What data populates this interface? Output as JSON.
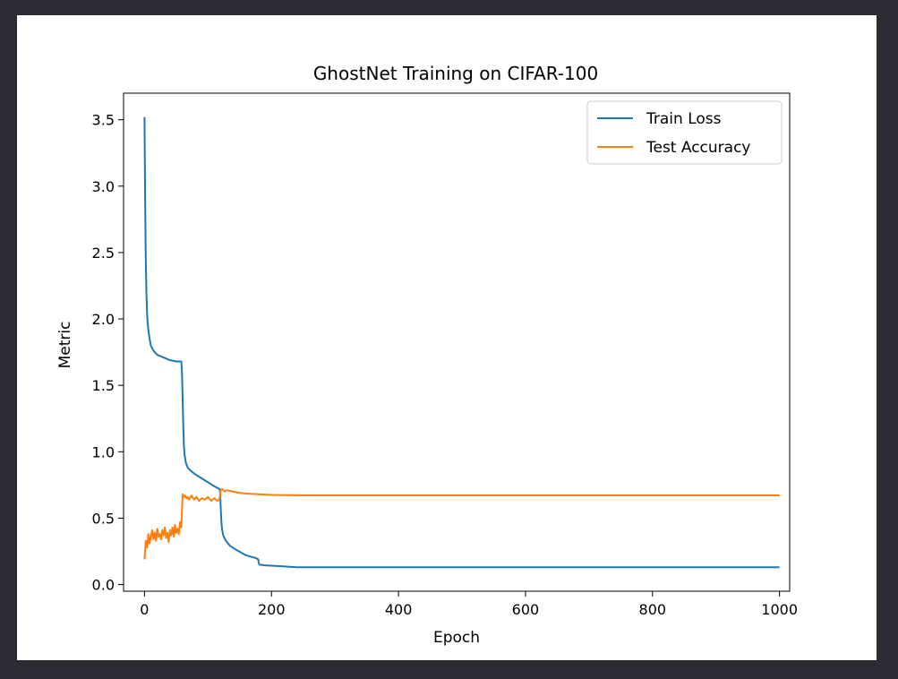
{
  "chart_data": {
    "type": "line",
    "title": "GhostNet Training on CIFAR-100",
    "xlabel": "Epoch",
    "ylabel": "Metric",
    "xlim": [
      -33,
      1016
    ],
    "ylim": [
      -0.05,
      3.7
    ],
    "xticks": [
      0,
      200,
      400,
      600,
      800,
      1000
    ],
    "yticks": [
      0.0,
      0.5,
      1.0,
      1.5,
      2.0,
      2.5,
      3.0,
      3.5
    ],
    "xtick_labels": [
      "0",
      "200",
      "400",
      "600",
      "800",
      "1000"
    ],
    "ytick_labels": [
      "0.0",
      "0.5",
      "1.0",
      "1.5",
      "2.0",
      "2.5",
      "3.0",
      "3.5"
    ],
    "grid": false,
    "legend_position": "top-right",
    "series": [
      {
        "name": "Train Loss",
        "color": "#1f77b4",
        "x": [
          0,
          1,
          2,
          3,
          4,
          5,
          6,
          8,
          10,
          13,
          16,
          20,
          25,
          30,
          40,
          50,
          58,
          59,
          60,
          61,
          62,
          63,
          65,
          68,
          72,
          80,
          90,
          100,
          110,
          118,
          119,
          120,
          121,
          122,
          124,
          128,
          135,
          145,
          160,
          175,
          179,
          180,
          181,
          190,
          210,
          240,
          300,
          400,
          500,
          600,
          700,
          800,
          900,
          1000
        ],
        "y": [
          3.52,
          2.9,
          2.45,
          2.2,
          2.05,
          1.97,
          1.92,
          1.85,
          1.8,
          1.77,
          1.75,
          1.73,
          1.72,
          1.71,
          1.69,
          1.68,
          1.68,
          1.6,
          1.4,
          1.2,
          1.05,
          0.98,
          0.92,
          0.88,
          0.86,
          0.83,
          0.8,
          0.77,
          0.74,
          0.72,
          0.7,
          0.58,
          0.48,
          0.42,
          0.37,
          0.33,
          0.29,
          0.26,
          0.22,
          0.2,
          0.19,
          0.16,
          0.15,
          0.145,
          0.14,
          0.13,
          0.13,
          0.13,
          0.13,
          0.13,
          0.13,
          0.13,
          0.13,
          0.13
        ]
      },
      {
        "name": "Test Accuracy",
        "color": "#ff7f0e",
        "x": [
          0,
          2,
          4,
          6,
          8,
          10,
          12,
          14,
          16,
          18,
          20,
          22,
          24,
          26,
          28,
          30,
          32,
          34,
          36,
          38,
          40,
          42,
          44,
          46,
          48,
          50,
          52,
          54,
          56,
          58,
          60,
          62,
          64,
          66,
          68,
          70,
          74,
          78,
          82,
          86,
          90,
          95,
          100,
          105,
          110,
          115,
          118,
          120,
          122,
          126,
          130,
          140,
          150,
          160,
          180,
          200,
          250,
          300,
          400,
          500,
          600,
          700,
          800,
          900,
          1000
        ],
        "y": [
          0.19,
          0.33,
          0.28,
          0.38,
          0.31,
          0.36,
          0.41,
          0.34,
          0.39,
          0.33,
          0.42,
          0.36,
          0.38,
          0.34,
          0.41,
          0.37,
          0.43,
          0.35,
          0.39,
          0.32,
          0.41,
          0.37,
          0.43,
          0.36,
          0.45,
          0.39,
          0.42,
          0.38,
          0.47,
          0.43,
          0.68,
          0.66,
          0.67,
          0.65,
          0.66,
          0.64,
          0.67,
          0.64,
          0.66,
          0.63,
          0.65,
          0.64,
          0.66,
          0.63,
          0.65,
          0.63,
          0.64,
          0.71,
          0.72,
          0.7,
          0.71,
          0.7,
          0.69,
          0.685,
          0.68,
          0.675,
          0.672,
          0.672,
          0.672,
          0.672,
          0.672,
          0.672,
          0.672,
          0.672,
          0.672
        ]
      }
    ]
  }
}
